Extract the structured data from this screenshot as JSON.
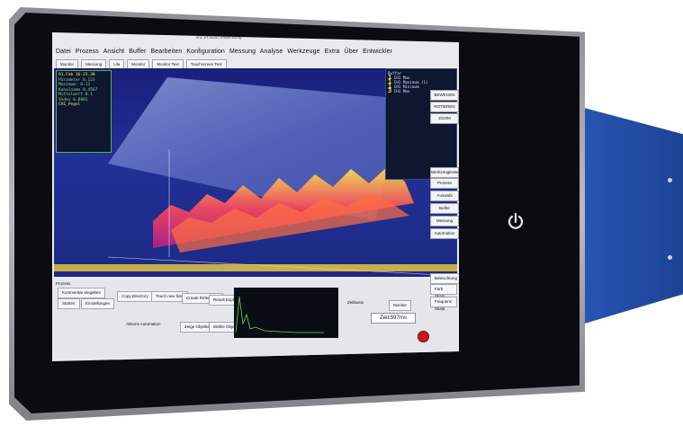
{
  "device": {
    "enclosure_color": "#2a56b4",
    "bezel_color": "#a9abb0",
    "power_icon": "power-icon"
  },
  "app": {
    "title_bar": "imc STUDIO Entwicklung",
    "menu": [
      "Datei",
      "Prozess",
      "Ansicht",
      "Buffer",
      "Bearbeiten",
      "Konfiguration",
      "Messung",
      "Analyse",
      "Werkzeuge",
      "Extra",
      "Über",
      "Entwickler"
    ],
    "toolbar": [
      "Monitor",
      "Messung",
      "Lila",
      "Monitor",
      "Monitor Text",
      "Touchscreen Text"
    ],
    "info_box": {
      "date": "01.Feb 16:23:30",
      "lines": [
        "Parameter 0.123",
        "Maximum: 0.12",
        "Kanalname 0.4567",
        "Mittelwert 0.1",
        "Stdev 0.0001"
      ],
      "highlight": "CH1_Pegel"
    },
    "right_overlay": {
      "header": "Buffer",
      "entries": [
        {
          "num": "1",
          "label": "CH1 Max"
        },
        {
          "num": "1",
          "label": "CH1 Maximum (1)"
        },
        {
          "num": "1",
          "label": "CH1 Minimum"
        },
        {
          "num": "3",
          "label": "CH1 Max"
        }
      ]
    },
    "side_buttons": [
      "BEWEGEN",
      "ROTIEREN",
      "ZOOM",
      "Werkzeugleiste",
      "Prozess",
      "Auswahl",
      "Buffer",
      "Messung",
      "Automation"
    ],
    "bottom": {
      "panel_label": "Prozess",
      "buttons": [
        "Kommentar eingeben",
        "Starten",
        "Einstellungen",
        "Copy Directory",
        "Touch new field",
        "Create Reference",
        "Result Explorer",
        "Zeige Objekte",
        "Wähle Objekte"
      ],
      "checkbox_label": "Aktions Automation",
      "right_buttons": [
        "Beleuchtung",
        "Farb Skala",
        "Frequenz Skala"
      ],
      "zeitbasis_label": "Zeitbasis",
      "monitor_label": "Monitor",
      "zeit_value": "Zeit:597ms"
    }
  }
}
